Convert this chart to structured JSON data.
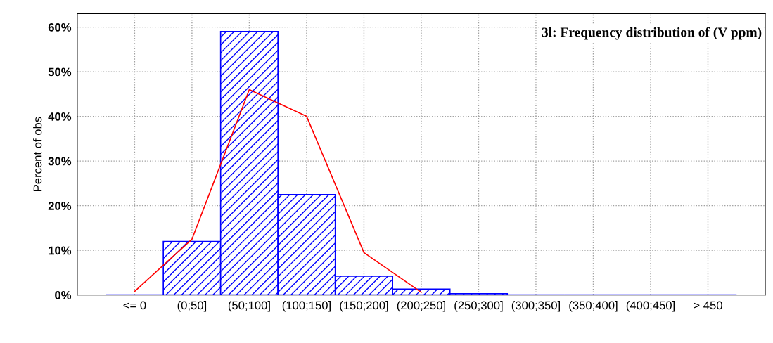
{
  "chart_data": {
    "type": "bar",
    "title": "3l: Frequency distribution of (V ppm)",
    "ylabel": "Percent of obs",
    "categories": [
      "<= 0",
      "(0;50]",
      "(50;100]",
      "(100;150]",
      "(150;200]",
      "(200;250]",
      "(250;300]",
      "(300;350]",
      "(350;400]",
      "(400;450]",
      "> 450"
    ],
    "values": [
      0,
      12,
      59,
      22.5,
      4.2,
      1.3,
      0.3,
      0,
      0,
      0,
      0
    ],
    "color": "#0000ff",
    "ylim": [
      0,
      63
    ],
    "yticks": [
      {
        "value": 0,
        "label": "0%"
      },
      {
        "value": 10,
        "label": "10%"
      },
      {
        "value": 20,
        "label": "20%"
      },
      {
        "value": 30,
        "label": "30%"
      },
      {
        "value": 40,
        "label": "40%"
      },
      {
        "value": 50,
        "label": "50%"
      },
      {
        "value": 60,
        "label": "60%"
      }
    ],
    "grid": true,
    "series": [
      {
        "type": "line",
        "color": "#ff0000",
        "values": [
          0.8,
          12.5,
          46,
          40,
          9.5,
          0.6,
          null,
          null,
          null,
          null,
          null
        ]
      }
    ]
  }
}
